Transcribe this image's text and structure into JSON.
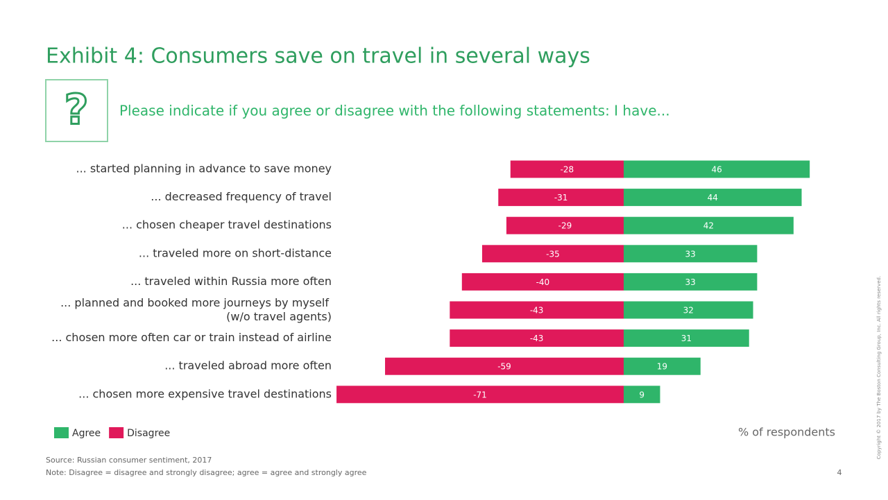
{
  "chart_data": {
    "type": "diverging-bar",
    "title": "Exhibit 4: Consumers save on travel in several ways",
    "subtitle": "Please indicate if you agree or disagree with the following statements: I have...",
    "categories": [
      "... started planning in advance to save money",
      "... decreased frequency of travel",
      "... chosen cheaper travel destinations",
      "... traveled more on short-distance",
      "... traveled within Russia more often",
      "... planned and booked more journeys by myself (w/o travel agents)",
      "... chosen more often car or train instead of airline",
      "... traveled abroad more often",
      "... chosen more expensive travel destinations"
    ],
    "series": [
      {
        "name": "Agree",
        "color": "#2fb56a",
        "values": [
          46,
          44,
          42,
          33,
          33,
          32,
          31,
          19,
          9
        ]
      },
      {
        "name": "Disagree",
        "color": "#e0195a",
        "values": [
          -28,
          -31,
          -29,
          -35,
          -40,
          -43,
          -43,
          -59,
          -71
        ]
      }
    ],
    "axis_note": "% of respondents",
    "source": "Source: Russian consumer sentiment, 2017",
    "note": "Note: Disagree = disagree and strongly disagree; agree = agree and strongly agree",
    "page_number": "4",
    "copyright": "Copyright © 2017 by The Boston Consulting Group, Inc. All rights reserved."
  }
}
